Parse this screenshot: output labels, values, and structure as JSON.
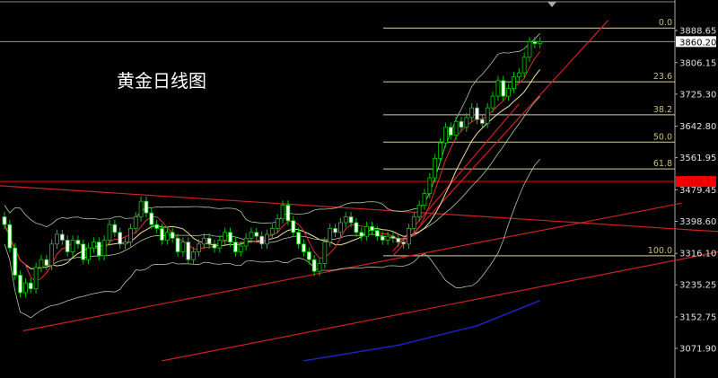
{
  "title": "黄金日线图",
  "chart_data": {
    "type": "candlestick",
    "title": "黄金日线图",
    "ylim": [
      3040,
      3915
    ],
    "y_ticks": [
      "3888.65",
      "3806.15",
      "3725.30",
      "3642.80",
      "3561.95",
      "3479.45",
      "3398.60",
      "3316.10",
      "3235.25",
      "3152.75",
      "3071.90"
    ],
    "current_price": "3860.20",
    "marked_price": "3500.77",
    "closes": [
      3390,
      3330,
      3260,
      3215,
      3240,
      3225,
      3280,
      3300,
      3285,
      3340,
      3365,
      3350,
      3320,
      3350,
      3340,
      3300,
      3330,
      3345,
      3310,
      3350,
      3390,
      3370,
      3340,
      3345,
      3380,
      3410,
      3450,
      3420,
      3390,
      3380,
      3350,
      3370,
      3355,
      3320,
      3345,
      3300,
      3320,
      3340,
      3355,
      3340,
      3330,
      3350,
      3370,
      3345,
      3320,
      3335,
      3355,
      3370,
      3360,
      3340,
      3365,
      3380,
      3405,
      3440,
      3400,
      3370,
      3340,
      3320,
      3300,
      3270,
      3290,
      3345,
      3380,
      3370,
      3395,
      3410,
      3395,
      3370,
      3360,
      3385,
      3375,
      3360,
      3350,
      3360,
      3355,
      3345,
      3340,
      3380,
      3410,
      3440,
      3470,
      3510,
      3560,
      3600,
      3640,
      3620,
      3655,
      3640,
      3665,
      3690,
      3660,
      3650,
      3690,
      3720,
      3760,
      3720,
      3740,
      3770,
      3780,
      3820,
      3860,
      3855,
      3860
    ],
    "fibonacci": [
      {
        "label": "0.0",
        "price": 3895
      },
      {
        "label": "23.6",
        "price": 3757
      },
      {
        "label": "38.2",
        "price": 3672
      },
      {
        "label": "50.0",
        "price": 3602
      },
      {
        "label": "61.8",
        "price": 3533
      },
      {
        "label": "100.0",
        "price": 3310
      }
    ],
    "trendlines": [
      {
        "from": [
          -1,
          3490
        ],
        "to": [
          136,
          3372
        ]
      },
      {
        "from": [
          3.5,
          3117
        ],
        "to": [
          129,
          3445
        ]
      },
      {
        "from": [
          30,
          3040
        ],
        "to": [
          136,
          3320
        ]
      },
      {
        "from": [
          74,
          3310
        ],
        "to": [
          115,
          3915
        ]
      },
      {
        "from": [
          74,
          3322
        ],
        "to": [
          98,
          3700
        ]
      }
    ],
    "long_ma": [
      [
        57,
        3040
      ],
      [
        75,
        3080
      ],
      [
        90,
        3130
      ],
      [
        102,
        3195
      ]
    ],
    "colors": {
      "up": "#00c800",
      "down": "#ffffff",
      "ma_fast": "#e03030",
      "ma_mid": "#f0e0a0",
      "band": "#a8c8a0",
      "trend": "#d02020",
      "long_ma": "#2020c0",
      "fib": "#d8cfa0",
      "marker": "#ff0000"
    }
  }
}
